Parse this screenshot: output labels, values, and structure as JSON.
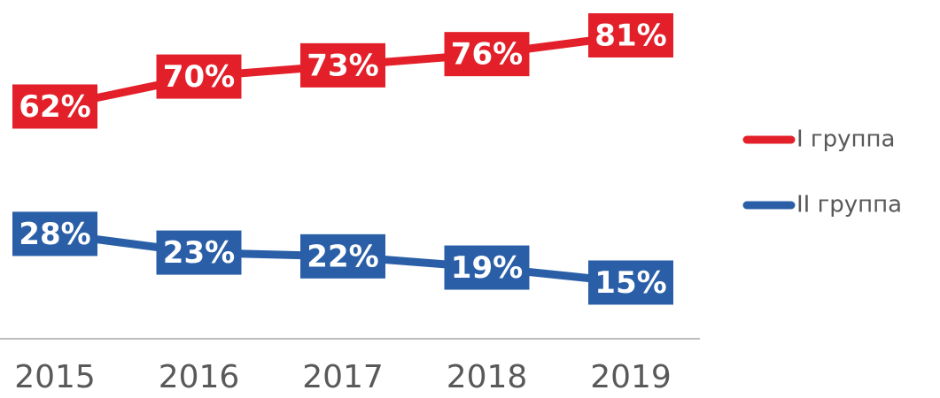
{
  "chart_data": {
    "type": "line",
    "categories": [
      "2015",
      "2016",
      "2017",
      "2018",
      "2019"
    ],
    "series": [
      {
        "name": "I группа",
        "color": "#e3202a",
        "values": [
          62,
          70,
          73,
          76,
          81
        ],
        "value_labels": [
          "62%",
          "70%",
          "73%",
          "76%",
          "81%"
        ]
      },
      {
        "name": "II группа",
        "color": "#2a5fa8",
        "values": [
          28,
          23,
          22,
          19,
          15
        ],
        "value_labels": [
          "28%",
          "23%",
          "22%",
          "19%",
          "15%"
        ]
      }
    ],
    "legend": "right"
  }
}
